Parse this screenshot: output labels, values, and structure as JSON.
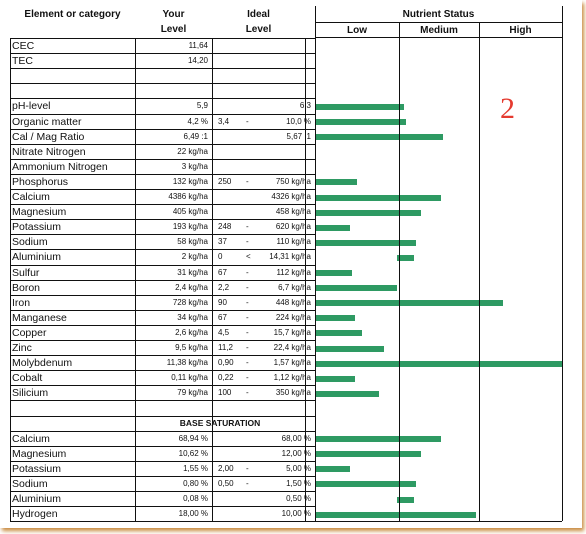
{
  "note_number": "2",
  "headers": {
    "element": "Element or category",
    "your": "Your",
    "your2": "Level",
    "ideal": "Ideal",
    "ideal2": "Level",
    "nutrient_status": "Nutrient Status",
    "low": "Low",
    "medium": "Medium",
    "high": "High"
  },
  "section_base": "BASE SATURATION",
  "rows_top": [
    {
      "name": "CEC",
      "your": "11,64",
      "ideal_lo": "",
      "sep": "",
      "ideal_hi": "",
      "bar": null
    },
    {
      "name": "TEC",
      "your": "14,20",
      "ideal_lo": "",
      "sep": "",
      "ideal_hi": "",
      "bar": null
    },
    {
      "name": "",
      "your": "",
      "ideal_lo": "",
      "sep": "",
      "ideal_hi": "",
      "bar": null
    },
    {
      "name": "",
      "your": "",
      "ideal_lo": "",
      "sep": "",
      "ideal_hi": "",
      "bar": null
    }
  ],
  "rows_main": [
    {
      "name": "pH-level",
      "your": "5,9",
      "ideal_lo": "",
      "sep": "",
      "ideal_hi": "6,3",
      "bar": [
        0,
        0.36
      ]
    },
    {
      "name": "Organic matter",
      "your": "4,2 %",
      "ideal_lo": "3,4",
      "sep": "-",
      "ideal_hi": "10,0 %",
      "bar": [
        0,
        0.37
      ]
    },
    {
      "name": "Cal / Mag Ratio",
      "your": "6,49 :1",
      "ideal_lo": "",
      "sep": "",
      "ideal_hi": "5,67 :1",
      "bar": [
        0,
        0.52
      ]
    },
    {
      "name": "Nitrate Nitrogen",
      "your": "22 kg/ha",
      "ideal_lo": "",
      "sep": "",
      "ideal_hi": "",
      "bar": null
    },
    {
      "name": "Ammonium Nitrogen",
      "your": "3 kg/ha",
      "ideal_lo": "",
      "sep": "",
      "ideal_hi": "",
      "bar": null
    },
    {
      "name": "Phosphorus",
      "your": "132 kg/ha",
      "ideal_lo": "250",
      "sep": "-",
      "ideal_hi": "750 kg/ha",
      "bar": [
        0,
        0.17
      ]
    },
    {
      "name": "Calcium",
      "your": "4386 kg/ha",
      "ideal_lo": "",
      "sep": "",
      "ideal_hi": "4326 kg/ha",
      "bar": [
        0,
        0.51
      ]
    },
    {
      "name": "Magnesium",
      "your": "405 kg/ha",
      "ideal_lo": "",
      "sep": "",
      "ideal_hi": "458 kg/ha",
      "bar": [
        0,
        0.43
      ]
    },
    {
      "name": "Potassium",
      "your": "193 kg/ha",
      "ideal_lo": "248",
      "sep": "-",
      "ideal_hi": "620 kg/ha",
      "bar": [
        0,
        0.14
      ]
    },
    {
      "name": "Sodium",
      "your": "58 kg/ha",
      "ideal_lo": "37",
      "sep": "-",
      "ideal_hi": "110 kg/ha",
      "bar": [
        0,
        0.41
      ]
    },
    {
      "name": "Aluminium",
      "your": "2 kg/ha",
      "ideal_lo": "0",
      "sep": "<",
      "ideal_hi": "14,31 kg/ha",
      "bar": [
        0.33,
        0.4
      ]
    },
    {
      "name": "Sulfur",
      "your": "31 kg/ha",
      "ideal_lo": "67",
      "sep": "-",
      "ideal_hi": "112 kg/ha",
      "bar": [
        0,
        0.15
      ]
    },
    {
      "name": "Boron",
      "your": "2,4 kg/ha",
      "ideal_lo": "2,2",
      "sep": "-",
      "ideal_hi": "6,7 kg/ha",
      "bar": [
        0,
        0.33
      ]
    },
    {
      "name": "Iron",
      "your": "728 kg/ha",
      "ideal_lo": "90",
      "sep": "-",
      "ideal_hi": "448 kg/ha",
      "bar": [
        0,
        0.76
      ]
    },
    {
      "name": "Manganese",
      "your": "34 kg/ha",
      "ideal_lo": "67",
      "sep": "-",
      "ideal_hi": "224 kg/ha",
      "bar": [
        0,
        0.16
      ]
    },
    {
      "name": "Copper",
      "your": "2,6 kg/ha",
      "ideal_lo": "4,5",
      "sep": "-",
      "ideal_hi": "15,7 kg/ha",
      "bar": [
        0,
        0.19
      ]
    },
    {
      "name": "Zinc",
      "your": "9,5 kg/ha",
      "ideal_lo": "11,2",
      "sep": "-",
      "ideal_hi": "22,4 kg/ha",
      "bar": [
        0,
        0.28
      ]
    },
    {
      "name": "Molybdenum",
      "your": "11,38 kg/ha",
      "ideal_lo": "0,90",
      "sep": "-",
      "ideal_hi": "1,57 kg/ha",
      "bar": [
        0,
        1.0
      ]
    },
    {
      "name": "Cobalt",
      "your": "0,11 kg/ha",
      "ideal_lo": "0,22",
      "sep": "-",
      "ideal_hi": "1,12 kg/ha",
      "bar": [
        0,
        0.16
      ]
    },
    {
      "name": "Silicium",
      "your": "79 kg/ha",
      "ideal_lo": "100",
      "sep": "-",
      "ideal_hi": "350 kg/ha",
      "bar": [
        0,
        0.26
      ]
    }
  ],
  "rows_base": [
    {
      "name": "Calcium",
      "your": "68,94 %",
      "ideal_lo": "",
      "sep": "",
      "ideal_hi": "68,00 %",
      "bar": [
        0,
        0.51
      ]
    },
    {
      "name": "Magnesium",
      "your": "10,62 %",
      "ideal_lo": "",
      "sep": "",
      "ideal_hi": "12,00 %",
      "bar": [
        0,
        0.43
      ]
    },
    {
      "name": "Potassium",
      "your": "1,55 %",
      "ideal_lo": "2,00",
      "sep": "-",
      "ideal_hi": "5,00 %",
      "bar": [
        0,
        0.14
      ]
    },
    {
      "name": "Sodium",
      "your": "0,80 %",
      "ideal_lo": "0,50",
      "sep": "-",
      "ideal_hi": "1,50 %",
      "bar": [
        0,
        0.41
      ]
    },
    {
      "name": "Aluminium",
      "your": "0,08 %",
      "ideal_lo": "",
      "sep": "",
      "ideal_hi": "0,50 %",
      "bar": [
        0.33,
        0.4
      ]
    },
    {
      "name": "Hydrogen",
      "your": "18,00 %",
      "ideal_lo": "",
      "sep": "",
      "ideal_hi": "10,00 %",
      "bar": [
        0,
        0.65
      ]
    }
  ],
  "colors": {
    "bar": "#2e9a63",
    "note": "#e53a2f",
    "shadow": "#c98a3f"
  }
}
